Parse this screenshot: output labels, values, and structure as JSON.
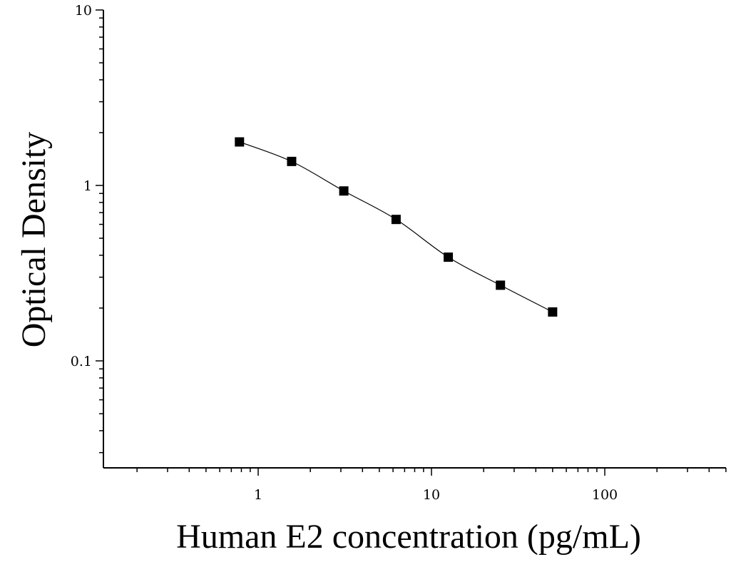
{
  "chart_data": {
    "type": "scatter",
    "title": "",
    "xlabel": "Human E2 concentration (pg/mL)",
    "ylabel": "Optical Density",
    "x_scale": "log",
    "y_scale": "log",
    "xlim": [
      0.1,
      500
    ],
    "ylim": [
      0.03,
      10
    ],
    "x_tick_labels": [
      "1",
      "10",
      "100"
    ],
    "y_tick_labels": [
      "10",
      "1",
      "0.1"
    ],
    "grid": false,
    "legend": "none",
    "marker": "square",
    "colors": {
      "marker": "#000000",
      "curve": "#000000",
      "axis": "#000000"
    },
    "series": [
      {
        "x": [
          0.78,
          1.56,
          3.12,
          6.25,
          12.5,
          25,
          50
        ],
        "y": [
          1.77,
          1.37,
          0.93,
          0.64,
          0.39,
          0.27,
          0.19
        ]
      }
    ]
  }
}
